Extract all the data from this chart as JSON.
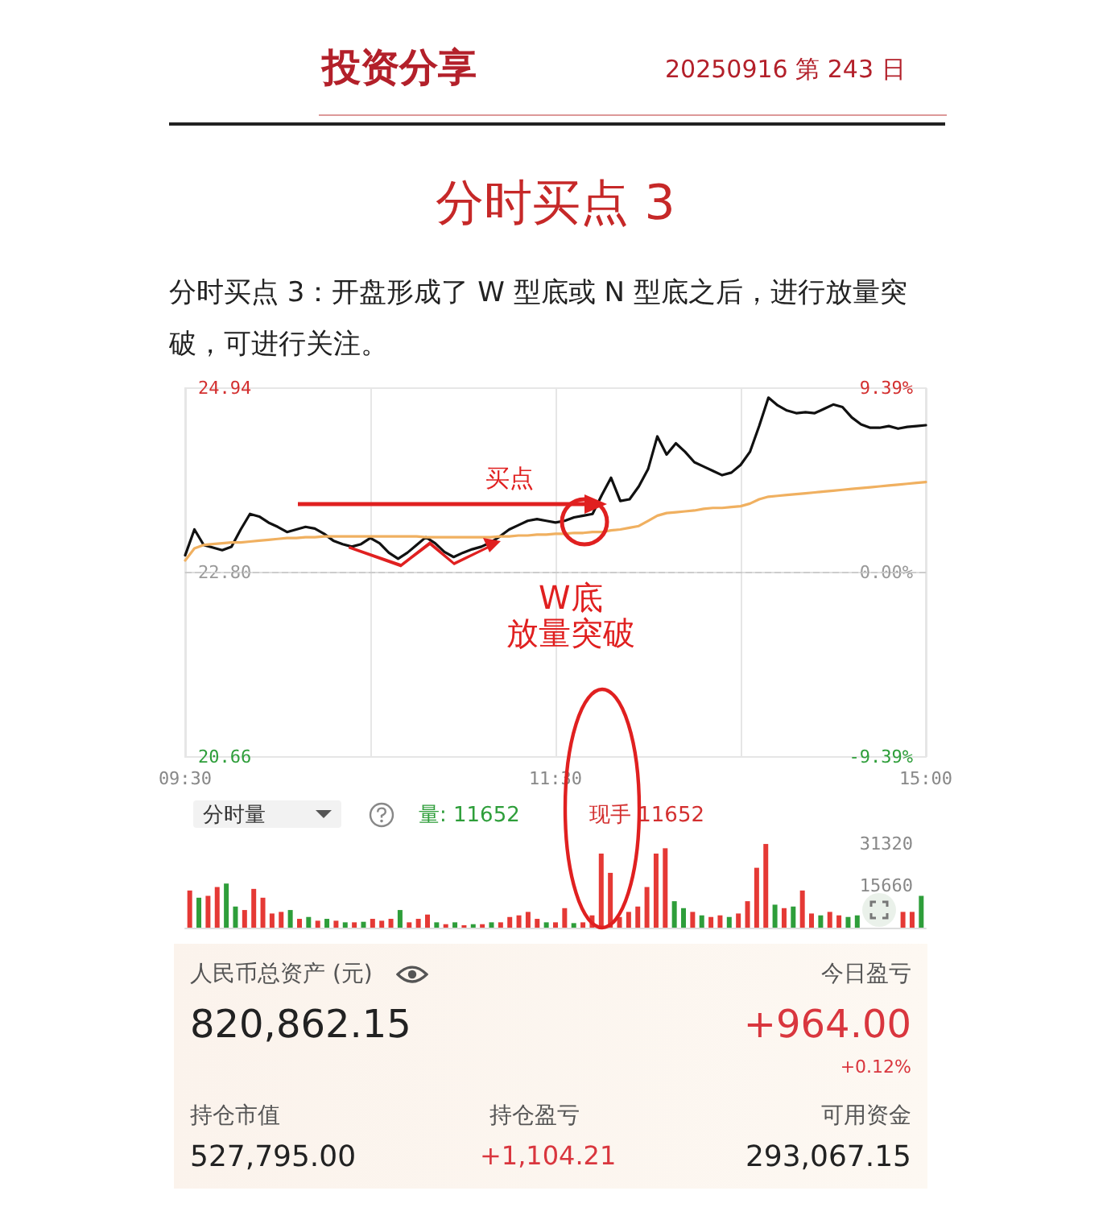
{
  "chart_data": [
    {
      "type": "line",
      "title": "分时买点 3",
      "subtitle": "分时买点 3：开盘形成了 W 型底或 N 型底之后，进行放量突破，可进行关注。",
      "annotations": [
        "投资分享",
        "20250916 第 243 日",
        "买点",
        "W底",
        "放量突破"
      ],
      "categories": [
        "09:30",
        null,
        null,
        null,
        null,
        null,
        null,
        null,
        null,
        null,
        null,
        null,
        null,
        null,
        null,
        null,
        null,
        null,
        null,
        null,
        null,
        null,
        null,
        null,
        null,
        null,
        null,
        null,
        null,
        null,
        null,
        null,
        null,
        null,
        null,
        null,
        null,
        null,
        null,
        null,
        "11:30",
        null,
        null,
        null,
        null,
        null,
        null,
        null,
        null,
        null,
        null,
        null,
        null,
        null,
        null,
        null,
        null,
        null,
        null,
        null,
        null,
        null,
        null,
        null,
        null,
        null,
        null,
        null,
        null,
        null,
        null,
        null,
        null,
        null,
        null,
        null,
        null,
        null,
        null,
        null,
        "15:00"
      ],
      "ylim": [
        20.66,
        24.94
      ],
      "yticks": [
        20.66,
        {
          "value": 22.8,
          "label": "22.80"
        },
        24.94
      ],
      "y2lim": [
        -9.39,
        9.39
      ],
      "y2ticks": [
        {
          "value": -9.39,
          "label": "-9.39%"
        },
        {
          "value": 0,
          "label": "0.00%"
        },
        {
          "value": 9.39,
          "label": "9.39%"
        }
      ],
      "ref_lines": [
        {
          "axis": "y",
          "value": 22.8,
          "color": "#cccccc",
          "line_style": "dashed"
        }
      ],
      "grid": "x",
      "marker": "none",
      "line_style": "solid",
      "series": [
        {
          "color": "#111111",
          "values": [
            23.0,
            23.3,
            23.12,
            23.09,
            23.06,
            23.1,
            23.3,
            23.48,
            23.45,
            23.38,
            23.33,
            23.27,
            23.3,
            23.33,
            23.31,
            23.25,
            23.17,
            23.13,
            23.1,
            23.13,
            23.2,
            23.14,
            23.03,
            22.96,
            23.03,
            23.12,
            23.21,
            23.14,
            23.04,
            22.98,
            23.03,
            23.07,
            23.1,
            23.15,
            23.22,
            23.3,
            23.35,
            23.4,
            23.42,
            23.4,
            23.38,
            23.4,
            23.44,
            23.46,
            23.48,
            23.7,
            23.9,
            23.63,
            23.65,
            23.8,
            24.0,
            24.38,
            24.17,
            24.3,
            24.2,
            24.08,
            24.03,
            23.98,
            23.93,
            23.96,
            24.05,
            24.2,
            24.5,
            24.83,
            24.74,
            24.68,
            24.65,
            24.66,
            24.65,
            24.7,
            24.75,
            24.72,
            24.6,
            24.52,
            24.48,
            24.48,
            24.5,
            24.47,
            24.49,
            24.5,
            24.51
          ]
        },
        {
          "color": "#f0b060",
          "values": [
            22.94,
            23.08,
            23.12,
            23.13,
            23.14,
            23.15,
            23.15,
            23.16,
            23.17,
            23.18,
            23.19,
            23.2,
            23.2,
            23.21,
            23.21,
            23.22,
            23.22,
            23.22,
            23.22,
            23.22,
            23.22,
            23.22,
            23.22,
            23.22,
            23.22,
            23.22,
            23.21,
            23.21,
            23.21,
            23.21,
            23.21,
            23.21,
            23.21,
            23.21,
            23.22,
            23.22,
            23.23,
            23.23,
            23.24,
            23.24,
            23.25,
            23.25,
            23.26,
            23.26,
            23.27,
            23.27,
            23.29,
            23.3,
            23.32,
            23.34,
            23.4,
            23.46,
            23.49,
            23.5,
            23.51,
            23.52,
            23.54,
            23.55,
            23.55,
            23.56,
            23.57,
            23.6,
            23.65,
            23.68,
            23.69,
            23.7,
            23.71,
            23.72,
            23.73,
            23.74,
            23.75,
            23.76,
            23.77,
            23.78,
            23.79,
            23.8,
            23.81,
            23.82,
            23.83,
            23.84,
            23.85
          ]
        }
      ]
    },
    {
      "type": "bar",
      "annotations": [
        "分时量",
        "量: 11652",
        "现手 11652"
      ],
      "ylim": [
        0,
        31320
      ],
      "yticks": [
        15660,
        31320
      ],
      "tick_labels": "y",
      "values": [
        13900,
        11200,
        11900,
        15200,
        16500,
        7900,
        6600,
        14500,
        11200,
        5300,
        5900,
        6600,
        3300,
        4000,
        2600,
        3300,
        2600,
        2000,
        2000,
        2200,
        3300,
        2600,
        3300,
        6600,
        2000,
        3300,
        4900,
        2000,
        1300,
        2000,
        900,
        1300,
        1300,
        2000,
        2000,
        4000,
        4600,
        5900,
        3300,
        2000,
        2000,
        7300,
        1700,
        2000,
        4600,
        27700,
        20500,
        4000,
        5900,
        7900,
        15200,
        27700,
        29700,
        9900,
        7300,
        5900,
        4600,
        4000,
        4600,
        4000,
        5300,
        9900,
        22400,
        31300,
        8600,
        7300,
        7900,
        13900,
        5300,
        4600,
        5900,
        4600,
        4000,
        4600,
        null,
        null,
        null,
        null,
        5900,
        5900,
        11900
      ],
      "colors": [
        "#e53935",
        "#2e9e3a",
        "#e53935",
        "#e53935",
        "#2e9e3a",
        "#2e9e3a",
        "#e53935",
        "#e53935",
        "#e53935",
        "#e53935",
        "#e53935",
        "#2e9e3a",
        "#e53935",
        "#2e9e3a",
        "#e53935",
        "#2e9e3a",
        "#e53935",
        "#2e9e3a",
        "#e53935",
        "#2e9e3a",
        "#e53935",
        "#e53935",
        "#e53935",
        "#2e9e3a",
        "#e53935",
        "#e53935",
        "#e53935",
        "#2e9e3a",
        "#e53935",
        "#2e9e3a",
        "#e53935",
        "#2e9e3a",
        "#e53935",
        "#2e9e3a",
        "#e53935",
        "#e53935",
        "#e53935",
        "#e53935",
        "#e53935",
        "#2e9e3a",
        "#e53935",
        "#e53935",
        "#2e9e3a",
        "#e53935",
        "#e53935",
        "#e53935",
        "#e53935",
        "#e53935",
        "#e53935",
        "#e53935",
        "#e53935",
        "#e53935",
        "#e53935",
        "#2e9e3a",
        "#2e9e3a",
        "#e53935",
        "#2e9e3a",
        "#e53935",
        "#e53935",
        "#2e9e3a",
        "#e53935",
        "#e53935",
        "#e53935",
        "#e53935",
        "#2e9e3a",
        "#e53935",
        "#2e9e3a",
        "#e53935",
        "#e53935",
        "#2e9e3a",
        "#e53935",
        "#e53935",
        "#2e9e3a",
        "#2e9e3a",
        null,
        null,
        null,
        null,
        "#e53935",
        "#e53935",
        "#2e9e3a"
      ]
    },
    {
      "type": "other",
      "annotations": [
        "人民币总资产 (元)",
        "820,862.15",
        "今日盈亏",
        "+964.00",
        "+0.12%",
        "持仓市值",
        "527,795.00",
        "持仓盈亏",
        "+1,104.21",
        "可用资金",
        "293,067.15"
      ]
    }
  ]
}
